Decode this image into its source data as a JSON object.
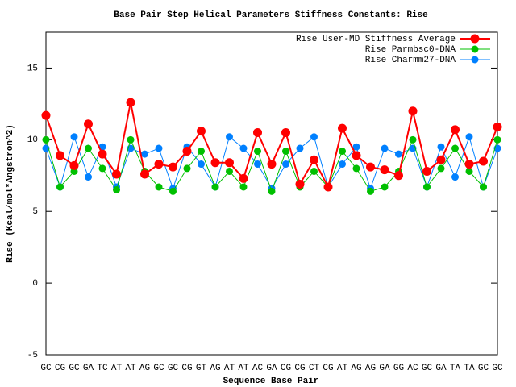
{
  "chart_data": {
    "type": "line",
    "title": "Base Pair Step Helical Parameters Stiffness Constants: Rise",
    "x_label": "Sequence Base Pair",
    "y_label": "Rise (Kcal/mol*Angstron^2)",
    "categories": [
      "GC",
      "CG",
      "GC",
      "GA",
      "TC",
      "AT",
      "AT",
      "AG",
      "GC",
      "GC",
      "CG",
      "GT",
      "AG",
      "AT",
      "AT",
      "AC",
      "GA",
      "CG",
      "CG",
      "CT",
      "CG",
      "AT",
      "AG",
      "AG",
      "GA",
      "GG",
      "AC",
      "GC",
      "GA",
      "TA",
      "TA",
      "GC",
      "GC"
    ],
    "series": [
      {
        "name": "Rise User-MD Stiffness Average",
        "color": "#ff0000",
        "values": [
          11.7,
          8.9,
          8.2,
          11.1,
          9.0,
          7.6,
          12.6,
          7.6,
          8.3,
          8.1,
          9.2,
          10.6,
          8.4,
          8.4,
          7.3,
          10.5,
          8.3,
          10.5,
          6.9,
          8.6,
          6.7,
          10.8,
          8.9,
          8.1,
          7.9,
          7.5,
          12.0,
          7.8,
          8.6,
          10.7,
          8.3,
          8.5,
          10.9
        ]
      },
      {
        "name": "Rise Parmbsc0-DNA",
        "color": "#00c000",
        "values": [
          10.0,
          6.7,
          7.8,
          9.4,
          8.0,
          6.5,
          10.0,
          7.8,
          6.7,
          6.4,
          8.0,
          9.2,
          6.7,
          7.8,
          6.7,
          9.2,
          6.4,
          9.2,
          6.7,
          7.8,
          6.7,
          9.2,
          8.0,
          6.4,
          6.7,
          7.8,
          10.0,
          6.7,
          8.0,
          9.4,
          7.8,
          6.7,
          10.0
        ]
      },
      {
        "name": "Rise Charmm27-DNA",
        "color": "#0080ff",
        "values": [
          9.4,
          6.7,
          10.2,
          7.4,
          9.5,
          6.7,
          9.4,
          9.0,
          9.4,
          6.6,
          9.5,
          8.3,
          6.7,
          10.2,
          9.4,
          8.3,
          6.6,
          8.3,
          9.4,
          10.2,
          6.7,
          8.3,
          9.5,
          6.6,
          9.4,
          9.0,
          9.4,
          6.7,
          9.5,
          7.4,
          10.2,
          6.7,
          9.4
        ]
      }
    ],
    "ylim": [
      -5,
      17.5
    ],
    "yticks": [
      -5,
      0,
      5,
      10,
      15
    ],
    "legend": "top-right"
  }
}
